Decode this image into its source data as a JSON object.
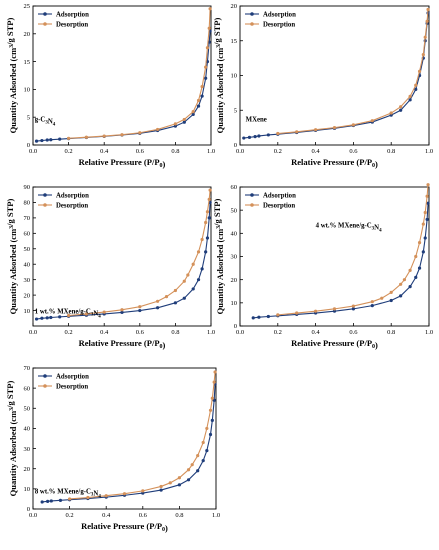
{
  "colors": {
    "adsorption": "#1f3d7a",
    "desorption": "#d4915a"
  },
  "chart_data": [
    {
      "type": "line",
      "annotation": "g-C3N4",
      "xlabel": "Relative Pressure (P/P0)",
      "ylabel": "Quantity Adsorbed (cm3/g STP)",
      "xlim": [
        0,
        1
      ],
      "ylim": [
        0,
        25
      ],
      "xticks": [
        0.0,
        0.2,
        0.4,
        0.6,
        0.8,
        1.0
      ],
      "yticks": [
        0,
        5,
        10,
        15,
        20,
        25
      ],
      "legend": "top-left",
      "series": [
        {
          "name": "Adsorption",
          "x": [
            0.02,
            0.05,
            0.08,
            0.1,
            0.15,
            0.2,
            0.3,
            0.4,
            0.5,
            0.6,
            0.7,
            0.8,
            0.85,
            0.9,
            0.93,
            0.95,
            0.97,
            0.98,
            0.99,
            0.995
          ],
          "y": [
            0.7,
            0.8,
            0.9,
            0.95,
            1.05,
            1.15,
            1.35,
            1.55,
            1.8,
            2.1,
            2.6,
            3.4,
            4.1,
            5.5,
            7.0,
            8.8,
            12.0,
            15.0,
            18.5,
            20.5
          ]
        },
        {
          "name": "Desorption",
          "x": [
            0.995,
            0.99,
            0.98,
            0.97,
            0.95,
            0.93,
            0.9,
            0.85,
            0.8,
            0.7,
            0.6,
            0.5,
            0.4,
            0.3,
            0.2
          ],
          "y": [
            24.5,
            21.0,
            17.5,
            14.0,
            10.5,
            8.0,
            6.0,
            4.6,
            3.8,
            2.8,
            2.2,
            1.85,
            1.6,
            1.4,
            1.2
          ]
        }
      ]
    },
    {
      "type": "line",
      "annotation": "MXene",
      "xlabel": "Relative Pressure (P/P0)",
      "ylabel": "Quantity Adsorbed (cm3/g STP)",
      "xlim": [
        0,
        1
      ],
      "ylim": [
        0,
        20
      ],
      "xticks": [
        0.0,
        0.2,
        0.4,
        0.6,
        0.8,
        1.0
      ],
      "yticks": [
        0,
        5,
        10,
        15,
        20
      ],
      "legend": "top-left",
      "series": [
        {
          "name": "Adsorption",
          "x": [
            0.02,
            0.05,
            0.08,
            0.1,
            0.15,
            0.2,
            0.3,
            0.4,
            0.5,
            0.6,
            0.7,
            0.8,
            0.85,
            0.9,
            0.93,
            0.95,
            0.97,
            0.98,
            0.99,
            0.995
          ],
          "y": [
            1.0,
            1.1,
            1.2,
            1.3,
            1.45,
            1.55,
            1.8,
            2.1,
            2.4,
            2.8,
            3.3,
            4.3,
            5.0,
            6.5,
            8.0,
            10.0,
            12.5,
            15.0,
            17.5,
            19.0
          ]
        },
        {
          "name": "Desorption",
          "x": [
            0.995,
            0.99,
            0.98,
            0.97,
            0.95,
            0.93,
            0.9,
            0.85,
            0.8,
            0.7,
            0.6,
            0.5,
            0.4,
            0.3,
            0.2
          ],
          "y": [
            19.5,
            17.8,
            15.5,
            13.0,
            10.6,
            8.6,
            7.0,
            5.5,
            4.6,
            3.5,
            2.9,
            2.5,
            2.2,
            1.9,
            1.65
          ]
        }
      ]
    },
    {
      "type": "line",
      "annotation": "1 wt.% MXene/g-C3N4",
      "xlabel": "Relative Pressure (P/P0)",
      "ylabel": "Quantity Adsorbed (cm3/g STP)",
      "xlim": [
        0,
        1
      ],
      "ylim": [
        0,
        90
      ],
      "xticks": [
        0.0,
        0.2,
        0.4,
        0.6,
        0.8,
        1.0
      ],
      "yticks": [
        10,
        20,
        30,
        40,
        50,
        60,
        70,
        80,
        90
      ],
      "legend": "top-left",
      "series": [
        {
          "name": "Adsorption",
          "x": [
            0.02,
            0.05,
            0.08,
            0.1,
            0.15,
            0.2,
            0.3,
            0.4,
            0.5,
            0.6,
            0.7,
            0.8,
            0.85,
            0.9,
            0.93,
            0.95,
            0.97,
            0.98,
            0.99,
            0.995
          ],
          "y": [
            4.5,
            5.0,
            5.3,
            5.5,
            5.9,
            6.3,
            7.0,
            7.8,
            8.8,
            10.0,
            11.8,
            15.0,
            18.0,
            24.0,
            30.0,
            37.0,
            48.0,
            57.0,
            70.0,
            80.0
          ]
        },
        {
          "name": "Desorption",
          "x": [
            0.995,
            0.99,
            0.98,
            0.97,
            0.95,
            0.93,
            0.9,
            0.87,
            0.85,
            0.8,
            0.75,
            0.7,
            0.6,
            0.5,
            0.4,
            0.3,
            0.2
          ],
          "y": [
            88.0,
            82.0,
            74.0,
            67.0,
            56.0,
            48.0,
            40.0,
            33.0,
            29.0,
            23.0,
            19.0,
            16.0,
            12.5,
            10.5,
            9.0,
            7.8,
            6.8
          ]
        }
      ]
    },
    {
      "type": "line",
      "annotation": "4 wt.% MXene/g-C3N4",
      "xlabel": "Relative Pressure (P/P0)",
      "ylabel": "Quantity Adsorbed (cm3/g STP)",
      "xlim": [
        0,
        1
      ],
      "ylim": [
        0,
        60
      ],
      "xticks": [
        0.0,
        0.2,
        0.4,
        0.6,
        0.8,
        1.0
      ],
      "yticks": [
        0,
        10,
        20,
        30,
        40,
        50,
        60
      ],
      "legend": "top-left",
      "series": [
        {
          "name": "Adsorption",
          "x": [
            0.07,
            0.1,
            0.15,
            0.2,
            0.3,
            0.4,
            0.5,
            0.6,
            0.7,
            0.8,
            0.85,
            0.9,
            0.93,
            0.95,
            0.97,
            0.98,
            0.99,
            0.995
          ],
          "y": [
            3.5,
            3.8,
            4.1,
            4.4,
            5.0,
            5.6,
            6.4,
            7.4,
            8.8,
            11.0,
            13.0,
            17.0,
            21.0,
            25.0,
            32.0,
            38.0,
            46.0,
            53.0
          ]
        },
        {
          "name": "Desorption",
          "x": [
            0.995,
            0.99,
            0.98,
            0.97,
            0.95,
            0.93,
            0.9,
            0.87,
            0.85,
            0.8,
            0.75,
            0.7,
            0.6,
            0.5,
            0.4,
            0.3,
            0.2
          ],
          "y": [
            61.0,
            56.0,
            49.0,
            44.0,
            36.0,
            30.0,
            24.0,
            20.0,
            18.0,
            14.5,
            12.0,
            10.5,
            8.6,
            7.4,
            6.4,
            5.6,
            4.8
          ]
        }
      ]
    },
    {
      "type": "line",
      "annotation": "8 wt.% MXene/g-C3N4",
      "xlabel": "Relative Pressure (P/P0)",
      "ylabel": "Quantity Adsorbed (cm3/g STP)",
      "xlim": [
        0,
        1
      ],
      "ylim": [
        0,
        70
      ],
      "xticks": [
        0.0,
        0.2,
        0.4,
        0.6,
        0.8,
        1.0
      ],
      "yticks": [
        0,
        10,
        20,
        30,
        40,
        50,
        60,
        70
      ],
      "legend": "top-left",
      "series": [
        {
          "name": "Adsorption",
          "x": [
            0.05,
            0.08,
            0.1,
            0.15,
            0.2,
            0.3,
            0.4,
            0.5,
            0.6,
            0.7,
            0.8,
            0.85,
            0.9,
            0.93,
            0.95,
            0.97,
            0.98,
            0.99,
            0.995
          ],
          "y": [
            3.5,
            3.8,
            4.0,
            4.3,
            4.6,
            5.2,
            5.9,
            6.8,
            7.9,
            9.4,
            12.0,
            14.5,
            19.0,
            24.0,
            29.0,
            37.0,
            44.0,
            54.0,
            62.0
          ]
        },
        {
          "name": "Desorption",
          "x": [
            0.995,
            0.99,
            0.98,
            0.97,
            0.95,
            0.93,
            0.9,
            0.87,
            0.85,
            0.8,
            0.75,
            0.7,
            0.6,
            0.5,
            0.4,
            0.3,
            0.2
          ],
          "y": [
            68.0,
            63.0,
            55.0,
            49.0,
            40.0,
            33.0,
            26.5,
            22.0,
            19.5,
            15.5,
            13.0,
            11.2,
            9.0,
            7.6,
            6.6,
            5.7,
            5.0
          ]
        }
      ]
    }
  ]
}
